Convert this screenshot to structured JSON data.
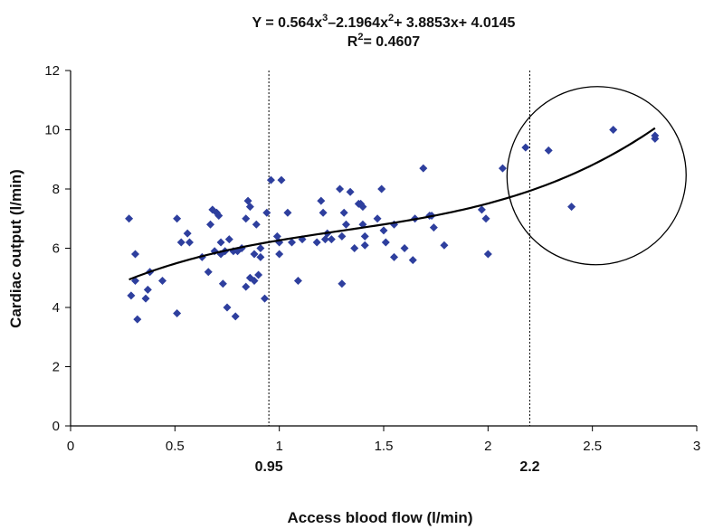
{
  "chart_data": {
    "type": "scatter",
    "title_line1_main": "Y = 0.564x",
    "title_line1_exp1": "3",
    "title_line1_mid": "–2.1964x",
    "title_line1_exp2": "2",
    "title_line1_end": "+ 3.8853x+ 4.0145",
    "title_line2_main": "R",
    "title_line2_exp": "2",
    "title_line2_end": "= 0.4607",
    "xlabel": "Access blood flow (l/min)",
    "ylabel": "Cardiac output (l/min)",
    "xlim": [
      0,
      3
    ],
    "ylim": [
      0,
      12
    ],
    "x_ticks": [
      "0",
      "0.5",
      "1",
      "1.5",
      "2",
      "2.5",
      "3"
    ],
    "y_ticks": [
      "0",
      "2",
      "4",
      "6",
      "8",
      "10",
      "12"
    ],
    "grid": false,
    "marker_color": "#2e3f9e",
    "trendline": {
      "type": "polynomial",
      "coefficients": [
        0.564,
        -2.1964,
        3.8853,
        4.0145
      ],
      "x_range": [
        0.28,
        2.8
      ]
    },
    "reference_lines": [
      {
        "x": 0.95,
        "label": "0.95"
      },
      {
        "x": 2.2,
        "label": "2.2"
      }
    ],
    "ellipse_annotation": {
      "cx": 2.52,
      "cy": 8.45,
      "rx": 0.43,
      "ry": 3.0,
      "rotation_deg": -30
    },
    "points": [
      [
        0.28,
        7.0
      ],
      [
        0.29,
        4.4
      ],
      [
        0.31,
        5.8
      ],
      [
        0.31,
        4.9
      ],
      [
        0.32,
        3.6
      ],
      [
        0.36,
        4.3
      ],
      [
        0.37,
        4.6
      ],
      [
        0.38,
        5.2
      ],
      [
        0.44,
        4.9
      ],
      [
        0.51,
        3.8
      ],
      [
        0.51,
        7.0
      ],
      [
        0.53,
        6.2
      ],
      [
        0.56,
        6.5
      ],
      [
        0.57,
        6.2
      ],
      [
        0.63,
        5.7
      ],
      [
        0.66,
        5.2
      ],
      [
        0.67,
        6.8
      ],
      [
        0.68,
        7.3
      ],
      [
        0.69,
        5.9
      ],
      [
        0.7,
        7.2
      ],
      [
        0.71,
        7.1
      ],
      [
        0.72,
        6.2
      ],
      [
        0.72,
        5.8
      ],
      [
        0.73,
        4.8
      ],
      [
        0.74,
        5.9
      ],
      [
        0.75,
        4.0
      ],
      [
        0.76,
        6.3
      ],
      [
        0.78,
        5.9
      ],
      [
        0.79,
        3.7
      ],
      [
        0.8,
        5.9
      ],
      [
        0.82,
        6.0
      ],
      [
        0.84,
        4.7
      ],
      [
        0.84,
        7.0
      ],
      [
        0.85,
        7.6
      ],
      [
        0.86,
        7.4
      ],
      [
        0.86,
        5.0
      ],
      [
        0.88,
        5.8
      ],
      [
        0.88,
        4.9
      ],
      [
        0.89,
        6.8
      ],
      [
        0.9,
        5.1
      ],
      [
        0.91,
        5.7
      ],
      [
        0.91,
        6.0
      ],
      [
        0.93,
        4.3
      ],
      [
        0.94,
        7.2
      ],
      [
        0.96,
        8.3
      ],
      [
        0.99,
        6.4
      ],
      [
        1.0,
        6.2
      ],
      [
        1.0,
        5.8
      ],
      [
        1.01,
        8.3
      ],
      [
        1.04,
        7.2
      ],
      [
        1.06,
        6.2
      ],
      [
        1.09,
        4.9
      ],
      [
        1.11,
        6.3
      ],
      [
        1.18,
        6.2
      ],
      [
        1.2,
        7.6
      ],
      [
        1.21,
        7.2
      ],
      [
        1.22,
        6.3
      ],
      [
        1.23,
        6.5
      ],
      [
        1.25,
        6.3
      ],
      [
        1.29,
        8.0
      ],
      [
        1.3,
        6.4
      ],
      [
        1.3,
        4.8
      ],
      [
        1.31,
        7.2
      ],
      [
        1.32,
        6.8
      ],
      [
        1.34,
        7.9
      ],
      [
        1.36,
        6.0
      ],
      [
        1.38,
        7.5
      ],
      [
        1.39,
        7.5
      ],
      [
        1.4,
        7.4
      ],
      [
        1.4,
        6.8
      ],
      [
        1.41,
        6.4
      ],
      [
        1.41,
        6.1
      ],
      [
        1.47,
        7.0
      ],
      [
        1.49,
        8.0
      ],
      [
        1.5,
        6.6
      ],
      [
        1.51,
        6.2
      ],
      [
        1.55,
        6.8
      ],
      [
        1.55,
        5.7
      ],
      [
        1.6,
        6.0
      ],
      [
        1.64,
        5.6
      ],
      [
        1.65,
        7.0
      ],
      [
        1.69,
        8.7
      ],
      [
        1.72,
        7.1
      ],
      [
        1.73,
        7.1
      ],
      [
        1.74,
        6.7
      ],
      [
        1.79,
        6.1
      ],
      [
        1.97,
        7.3
      ],
      [
        1.99,
        7.0
      ],
      [
        2.0,
        5.8
      ],
      [
        2.07,
        8.7
      ],
      [
        2.18,
        9.4
      ],
      [
        2.29,
        9.3
      ],
      [
        2.4,
        7.4
      ],
      [
        2.6,
        10.0
      ],
      [
        2.8,
        9.7
      ],
      [
        2.8,
        9.8
      ]
    ]
  }
}
